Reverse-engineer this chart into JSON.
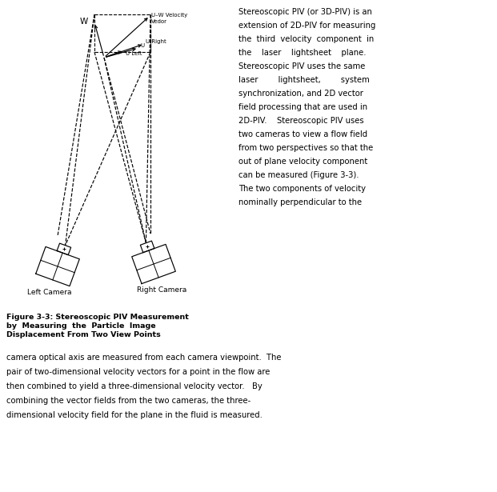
{
  "bg_color": "#ffffff",
  "text_color": "#000000",
  "diagram_text": {
    "uw_velocity_line1": "U–W Velocity",
    "uw_velocity_line2": "Vedor",
    "w_label": "W",
    "u_right": "U Right",
    "u_label": "U",
    "u_left": "U Left",
    "left_camera": "Left Camera",
    "right_camera": "Right Camera",
    "caption_line1": "Figure 3-3: Stereoscopic PIV Measurement",
    "caption_line2": "by  Measuring  the  Particle  Image",
    "caption_line3": "Displacement From Two View Points"
  },
  "right_text_lines": [
    "Stereoscopic PIV (or 3D-PIV) is an",
    "extension of 2D-PIV for measuring",
    "the  third  velocity  component  in",
    "the    laser    lightsheet    plane.",
    "Stereoscopic PIV uses the same",
    "laser        lightsheet,        system",
    "synchronization, and 2D vector",
    "field processing that are used in",
    "2D-PIV.    Stereoscopic PIV uses",
    "two cameras to view a flow field",
    "from two perspectives so that the",
    "out of plane velocity component",
    "can be measured (Figure 3-3).",
    "The two components of velocity",
    "nominally perpendicular to the"
  ],
  "bottom_text_lines": [
    "camera optical axis are measured from each camera viewpoint.  The",
    "pair of two-dimensional velocity vectors for a point in the flow are",
    "then combined to yield a three-dimensional velocity vector.   By",
    "combining the vector fields from the two cameras, the three-",
    "dimensional velocity field for the plane in the fluid is measured."
  ]
}
